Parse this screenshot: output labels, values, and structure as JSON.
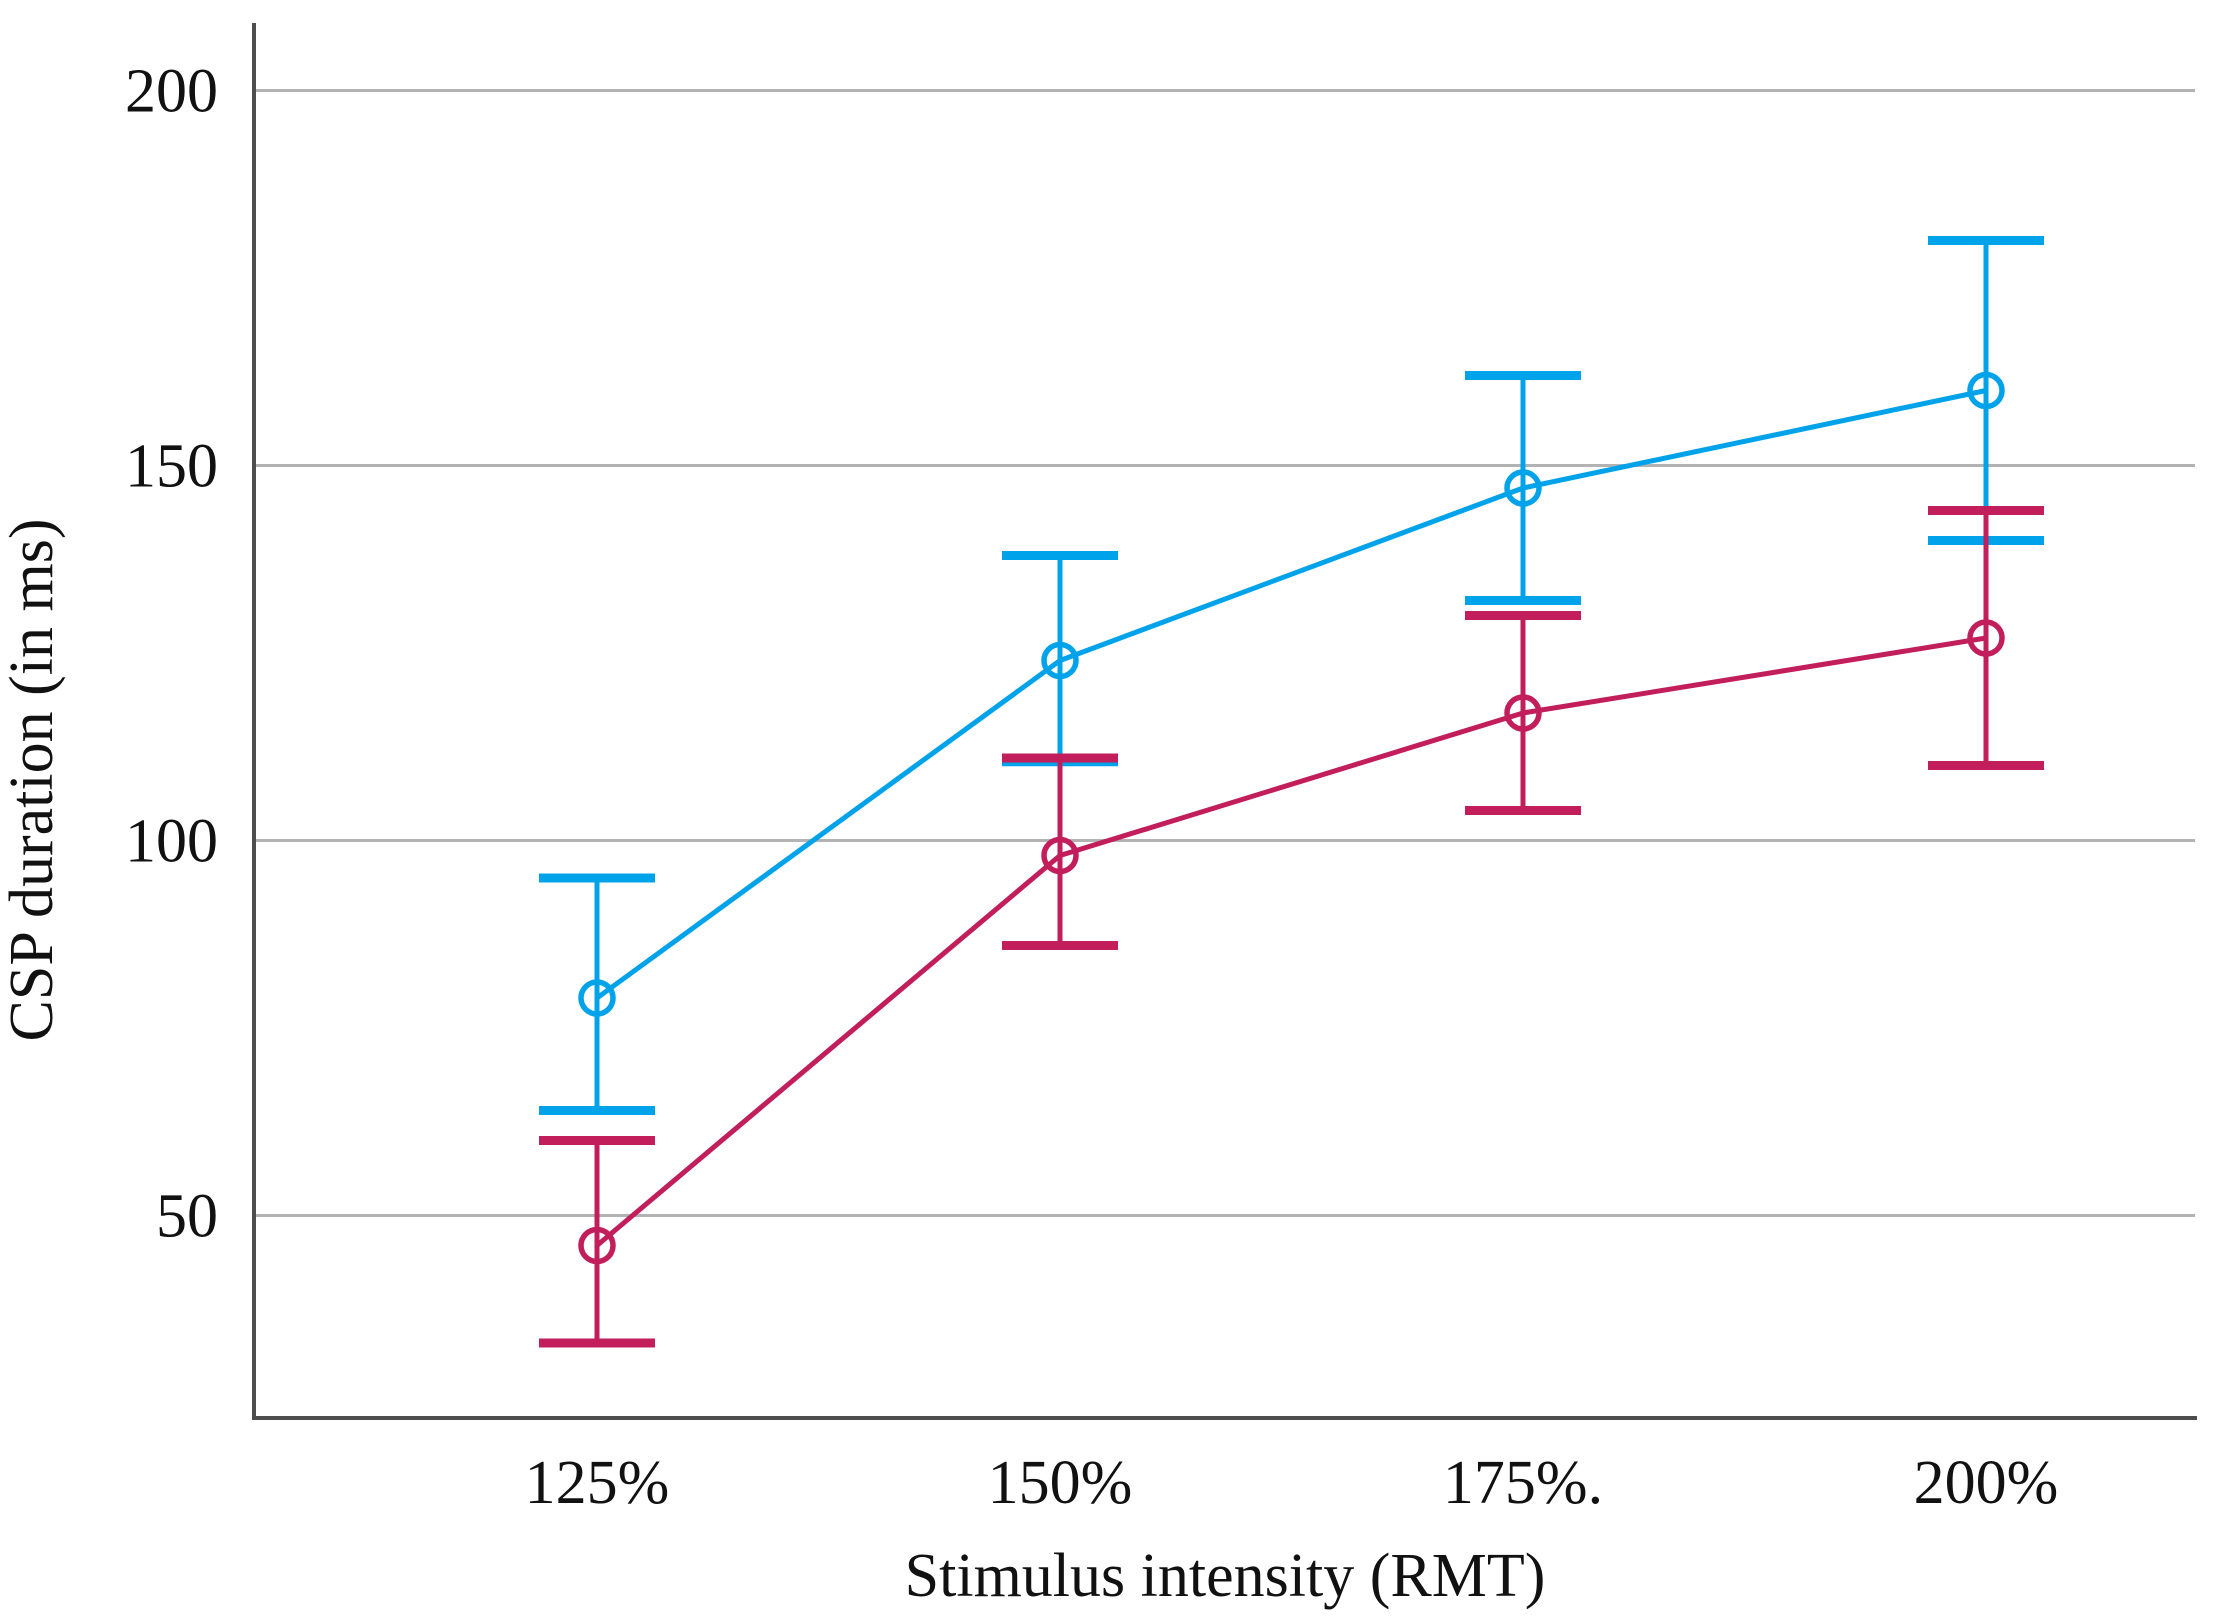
{
  "figure": {
    "background": "#ffffff"
  },
  "chart_data": {
    "type": "line",
    "title": "",
    "xlabel": "Stimulus intensity (RMT)",
    "ylabel": "CSP duration (in ms)",
    "categories": [
      "125%",
      "150%",
      "175%.",
      "200%"
    ],
    "y_ticks": [
      50,
      100,
      150,
      200
    ],
    "ylim": [
      23,
      209
    ],
    "grid": "horizontal-only",
    "legend": "none",
    "series": [
      {
        "name": "blue-series",
        "color": "#00A3EA",
        "marker": "open-circle",
        "values": [
          79,
          124,
          147,
          160
        ],
        "err_low": [
          64,
          110.5,
          132,
          140
        ],
        "err_high": [
          95,
          138,
          162,
          180
        ]
      },
      {
        "name": "crimson-series",
        "color": "#C21E5C",
        "marker": "open-circle",
        "values": [
          46,
          98,
          117,
          127
        ],
        "err_low": [
          33,
          86,
          104,
          110
        ],
        "err_high": [
          60,
          111,
          130,
          144
        ]
      }
    ],
    "grid_color": "#B3B3B3",
    "axis_color": "#4D4D4D",
    "text_color": "#111111"
  }
}
